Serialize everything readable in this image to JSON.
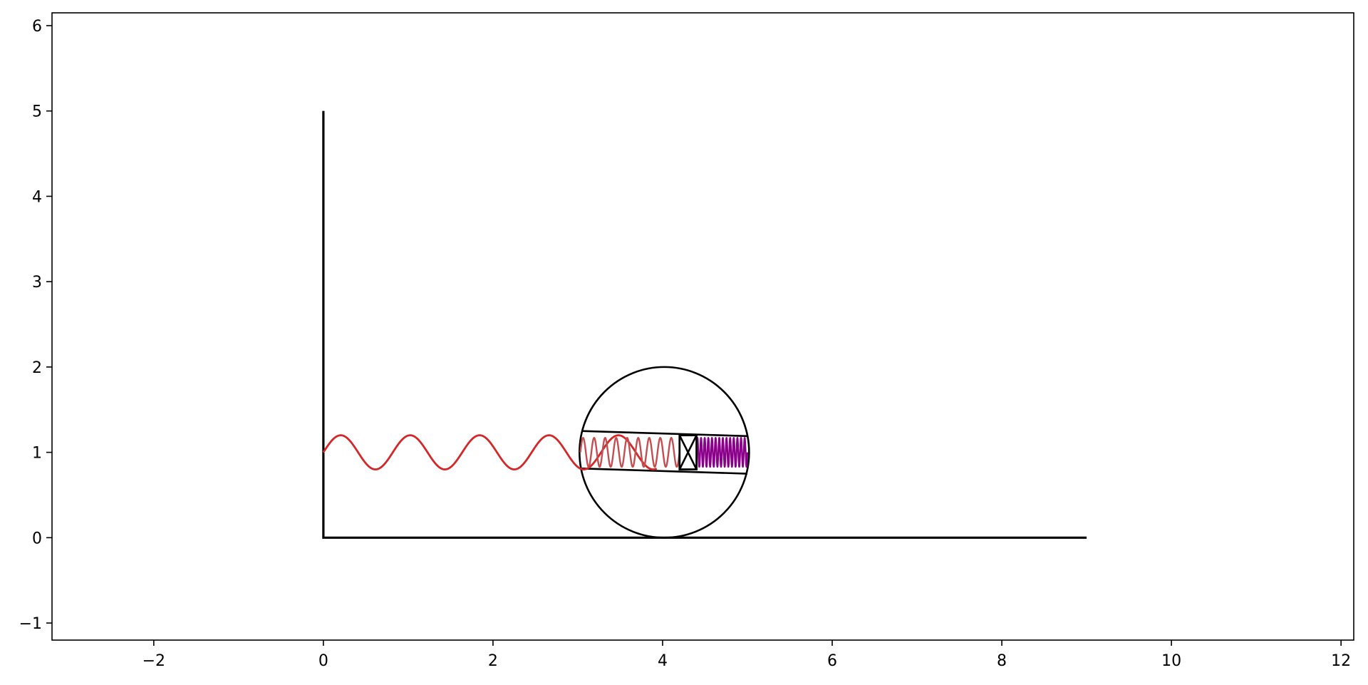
{
  "chart_data": {
    "type": "line",
    "title": "",
    "xlabel": "",
    "ylabel": "",
    "xlim": [
      -3.2,
      12.15
    ],
    "ylim": [
      -1.2,
      6.15
    ],
    "grid": false,
    "legend": "none",
    "x_ticks": [
      {
        "value": -2,
        "label": "−2"
      },
      {
        "value": 0,
        "label": "0"
      },
      {
        "value": 2,
        "label": "2"
      },
      {
        "value": 4,
        "label": "4"
      },
      {
        "value": 6,
        "label": "6"
      },
      {
        "value": 8,
        "label": "8"
      },
      {
        "value": 10,
        "label": "10"
      },
      {
        "value": 12,
        "label": "12"
      }
    ],
    "y_ticks": [
      {
        "value": -1,
        "label": "−1"
      },
      {
        "value": 0,
        "label": "0"
      },
      {
        "value": 1,
        "label": "1"
      },
      {
        "value": 2,
        "label": "2"
      },
      {
        "value": 3,
        "label": "3"
      },
      {
        "value": 4,
        "label": "4"
      },
      {
        "value": 5,
        "label": "5"
      },
      {
        "value": 6,
        "label": "6"
      }
    ],
    "wall": {
      "points": [
        [
          0,
          5
        ],
        [
          0,
          0
        ],
        [
          9,
          0
        ]
      ],
      "color": "#000000"
    },
    "wheel": {
      "center": [
        4.02,
        1.0
      ],
      "radius": 1.0,
      "color": "#000000"
    },
    "tube": {
      "top": [
        [
          3.05,
          1.25
        ],
        [
          5.0,
          1.19
        ]
      ],
      "bottom": [
        [
          3.05,
          0.81
        ],
        [
          5.0,
          0.75
        ]
      ],
      "color": "#000000"
    },
    "slider": {
      "x0": 4.2,
      "x1": 4.4,
      "y0": 0.8,
      "y1": 1.2,
      "color": "#000000"
    },
    "springs": [
      {
        "name": "",
        "x_start": 0.0,
        "x_end": 3.93,
        "center_y": 1.0,
        "amplitude": 0.2,
        "cycles": 4.8,
        "color": "#d62728"
      },
      {
        "name": "",
        "x_start": 3.03,
        "x_end": 4.2,
        "center_y": 1.0,
        "amplitude": 0.17,
        "cycles": 9,
        "color": "#c44e52"
      },
      {
        "name": "",
        "x_start": 4.4,
        "x_end": 5.0,
        "center_y": 1.0,
        "amplitude": 0.17,
        "cycles": 14,
        "color": "#8b008b"
      }
    ]
  }
}
